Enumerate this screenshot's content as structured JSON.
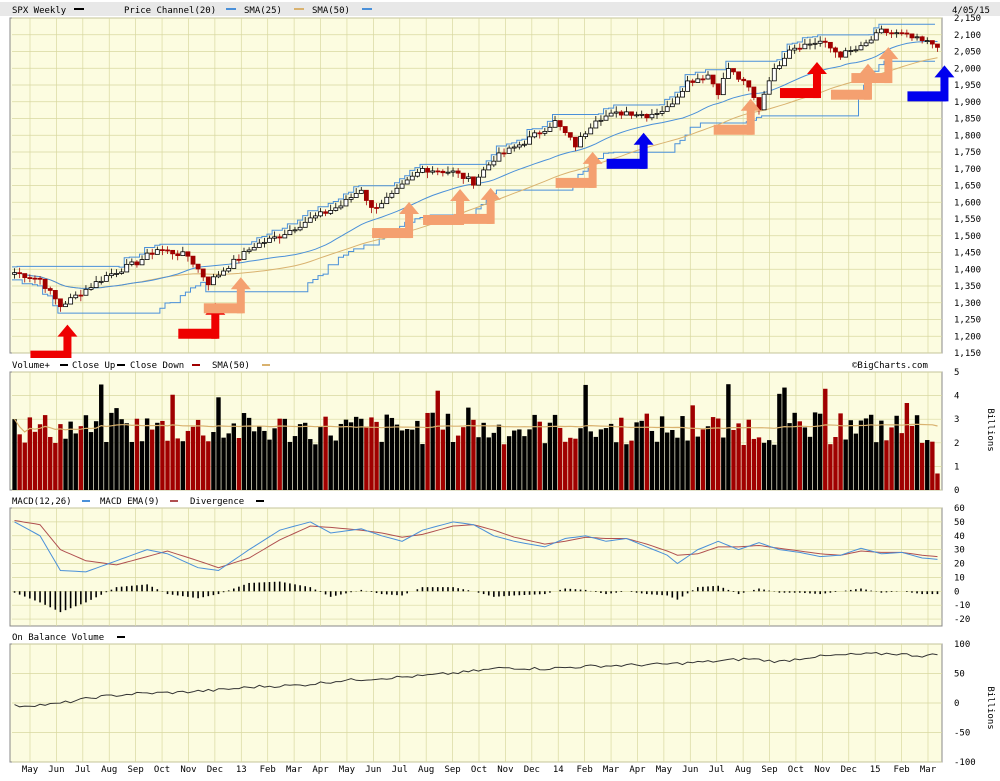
{
  "colors": {
    "plot_bg": "#fcfce0",
    "grid": "#d8d8a0",
    "header_bg": "#e8e8e8",
    "up": "#000000",
    "down": "#a00000",
    "sma25": "#4a90d9",
    "sma50": "#d9b26f",
    "channel": "#4a90d9",
    "macd": "#4a90d9",
    "macd_ema": "#b05050",
    "obv": "#333333",
    "arrow_red": "#ee0000",
    "arrow_salmon": "#f4a070",
    "arrow_blue": "#0000ee"
  },
  "header": {
    "symbol": "SPX Weekly",
    "price_channel": "Price Channel(20)",
    "sma25": "SMA(25)",
    "sma50": "SMA(50)",
    "date": "4/05/15"
  },
  "volume_header": {
    "vol": "Volume+",
    "up": "Close Up",
    "down": "Close Down",
    "sma": "SMA(50)",
    "credit": "©BigCharts.com"
  },
  "macd_header": {
    "macd": "MACD(12,26)",
    "ema": "MACD EMA(9)",
    "div": "Divergence"
  },
  "obv_header": {
    "obv": "On Balance Volume"
  },
  "axes": {
    "price_ticks": [
      "2,150",
      "2,100",
      "2,050",
      "2,000",
      "1,950",
      "1,900",
      "1,850",
      "1,800",
      "1,750",
      "1,700",
      "1,650",
      "1,600",
      "1,550",
      "1,500",
      "1,450",
      "1,400",
      "1,350",
      "1,300",
      "1,250",
      "1,200",
      "1,150"
    ],
    "volume_ticks": [
      "5",
      "4",
      "3",
      "2",
      "1",
      "0"
    ],
    "volume_unit": "Billions",
    "macd_ticks": [
      "60",
      "50",
      "40",
      "30",
      "20",
      "10",
      "0",
      "-10",
      "-20"
    ],
    "obv_ticks": [
      "100",
      "50",
      "0",
      "-50",
      "-100"
    ],
    "obv_unit": "Billions",
    "x_labels": [
      "May",
      "Jun",
      "Jul",
      "Aug",
      "Sep",
      "Oct",
      "Nov",
      "Dec",
      "13",
      "Feb",
      "Mar",
      "Apr",
      "May",
      "Jun",
      "Jul",
      "Aug",
      "Sep",
      "Oct",
      "Nov",
      "Dec",
      "14",
      "Feb",
      "Mar",
      "Apr",
      "May",
      "Jun",
      "Jul",
      "Aug",
      "Sep",
      "Oct",
      "Nov",
      "Dec",
      "15",
      "Feb",
      "Mar"
    ]
  },
  "chart_data": [
    {
      "type": "candlestick",
      "title": "SPX Weekly",
      "ylim": [
        1150,
        2150
      ],
      "weeks": 152,
      "close_keypoints": [
        [
          0,
          1390
        ],
        [
          5,
          1370
        ],
        [
          9,
          1290
        ],
        [
          12,
          1320
        ],
        [
          18,
          1380
        ],
        [
          24,
          1420
        ],
        [
          28,
          1460
        ],
        [
          34,
          1440
        ],
        [
          38,
          1360
        ],
        [
          42,
          1410
        ],
        [
          47,
          1470
        ],
        [
          52,
          1500
        ],
        [
          58,
          1550
        ],
        [
          64,
          1590
        ],
        [
          68,
          1640
        ],
        [
          70,
          1580
        ],
        [
          74,
          1620
        ],
        [
          80,
          1700
        ],
        [
          86,
          1690
        ],
        [
          90,
          1660
        ],
        [
          94,
          1730
        ],
        [
          100,
          1780
        ],
        [
          106,
          1840
        ],
        [
          110,
          1770
        ],
        [
          114,
          1850
        ],
        [
          120,
          1870
        ],
        [
          124,
          1860
        ],
        [
          128,
          1880
        ],
        [
          132,
          1960
        ],
        [
          136,
          1980
        ],
        [
          138,
          1930
        ],
        [
          140,
          2000
        ],
        [
          144,
          1940
        ],
        [
          146,
          1880
        ],
        [
          148,
          1970
        ],
        [
          152,
          2060
        ],
        [
          158,
          2080
        ],
        [
          162,
          2040
        ],
        [
          166,
          2060
        ],
        [
          170,
          2110
        ],
        [
          174,
          2100
        ],
        [
          178,
          2080
        ],
        [
          181,
          2070
        ]
      ]
    },
    {
      "type": "bar",
      "title": "Volume+",
      "ylim": [
        0,
        5
      ],
      "unit": "Billions",
      "sma50_approx": 2.6
    },
    {
      "type": "line",
      "title": "MACD(12,26)",
      "ylim": [
        -25,
        60
      ],
      "series": [
        {
          "name": "MACD(12,26)",
          "keypoints": [
            [
              0,
              50
            ],
            [
              5,
              40
            ],
            [
              9,
              15
            ],
            [
              14,
              14
            ],
            [
              20,
              22
            ],
            [
              26,
              30
            ],
            [
              30,
              27
            ],
            [
              36,
              17
            ],
            [
              40,
              15
            ],
            [
              46,
              30
            ],
            [
              52,
              44
            ],
            [
              58,
              50
            ],
            [
              62,
              42
            ],
            [
              68,
              45
            ],
            [
              72,
              40
            ],
            [
              76,
              36
            ],
            [
              80,
              44
            ],
            [
              86,
              50
            ],
            [
              90,
              48
            ],
            [
              94,
              40
            ],
            [
              98,
              36
            ],
            [
              104,
              32
            ],
            [
              108,
              38
            ],
            [
              112,
              40
            ],
            [
              116,
              36
            ],
            [
              120,
              38
            ],
            [
              124,
              32
            ],
            [
              128,
              26
            ],
            [
              130,
              20
            ],
            [
              134,
              30
            ],
            [
              138,
              36
            ],
            [
              142,
              30
            ],
            [
              146,
              35
            ],
            [
              150,
              30
            ],
            [
              154,
              28
            ],
            [
              158,
              25
            ],
            [
              162,
              26
            ],
            [
              166,
              31
            ],
            [
              170,
              27
            ],
            [
              174,
              28
            ],
            [
              178,
              24
            ],
            [
              181,
              23
            ]
          ]
        },
        {
          "name": "MACD EMA(9)",
          "keypoints": [
            [
              0,
              51
            ],
            [
              5,
              48
            ],
            [
              9,
              30
            ],
            [
              14,
              22
            ],
            [
              20,
              19
            ],
            [
              26,
              25
            ],
            [
              30,
              29
            ],
            [
              36,
              22
            ],
            [
              40,
              17
            ],
            [
              46,
              24
            ],
            [
              52,
              37
            ],
            [
              58,
              47
            ],
            [
              62,
              46
            ],
            [
              68,
              44
            ],
            [
              72,
              42
            ],
            [
              76,
              39
            ],
            [
              80,
              41
            ],
            [
              86,
              47
            ],
            [
              90,
              48
            ],
            [
              94,
              44
            ],
            [
              98,
              39
            ],
            [
              104,
              34
            ],
            [
              108,
              36
            ],
            [
              112,
              39
            ],
            [
              116,
              38
            ],
            [
              120,
              38
            ],
            [
              124,
              34
            ],
            [
              128,
              29
            ],
            [
              130,
              26
            ],
            [
              134,
              27
            ],
            [
              138,
              32
            ],
            [
              142,
              32
            ],
            [
              146,
              33
            ],
            [
              150,
              31
            ],
            [
              154,
              29
            ],
            [
              158,
              27
            ],
            [
              162,
              26
            ],
            [
              166,
              29
            ],
            [
              170,
              28
            ],
            [
              174,
              28
            ],
            [
              178,
              26
            ],
            [
              181,
              25
            ]
          ]
        }
      ]
    },
    {
      "type": "line",
      "title": "On Balance Volume",
      "ylim": [
        -100,
        100
      ],
      "unit": "Billions",
      "keypoints": [
        [
          0,
          -5
        ],
        [
          8,
          -2
        ],
        [
          16,
          10
        ],
        [
          24,
          16
        ],
        [
          32,
          18
        ],
        [
          40,
          22
        ],
        [
          48,
          28
        ],
        [
          56,
          30
        ],
        [
          64,
          38
        ],
        [
          72,
          42
        ],
        [
          80,
          46
        ],
        [
          88,
          52
        ],
        [
          96,
          60
        ],
        [
          104,
          58
        ],
        [
          112,
          62
        ],
        [
          120,
          64
        ],
        [
          128,
          66
        ],
        [
          136,
          70
        ],
        [
          144,
          75
        ],
        [
          150,
          70
        ],
        [
          156,
          78
        ],
        [
          164,
          82
        ],
        [
          172,
          84
        ],
        [
          178,
          80
        ],
        [
          181,
          82
        ]
      ]
    }
  ],
  "annotations": {
    "arrows": [
      {
        "color": "red",
        "date_index": 9
      },
      {
        "color": "red",
        "date_index": 38
      },
      {
        "color": "salmon",
        "date_index": 43
      },
      {
        "color": "salmon",
        "date_index": 76
      },
      {
        "color": "salmon",
        "date_index": 86
      },
      {
        "color": "salmon",
        "date_index": 92
      },
      {
        "color": "salmon",
        "date_index": 112
      },
      {
        "color": "blue",
        "date_index": 122
      },
      {
        "color": "salmon",
        "date_index": 143
      },
      {
        "color": "red",
        "date_index": 156
      },
      {
        "color": "salmon",
        "date_index": 166
      },
      {
        "color": "salmon",
        "date_index": 170
      },
      {
        "color": "blue",
        "date_index": 181
      }
    ]
  }
}
